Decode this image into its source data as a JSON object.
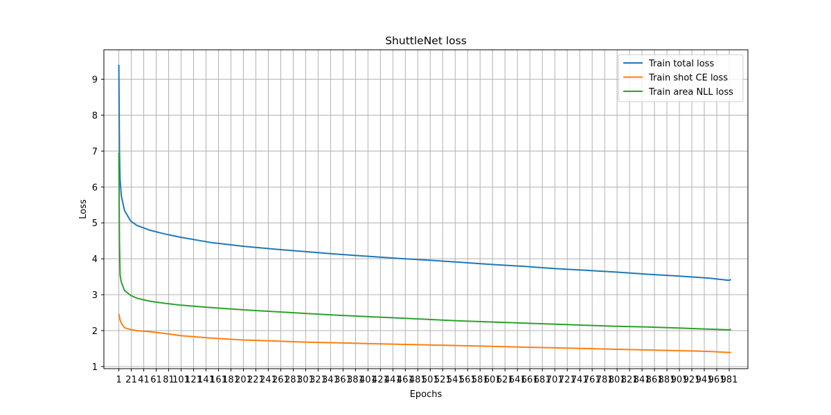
{
  "chart_data": {
    "type": "line",
    "title": "ShuttleNet loss",
    "xlabel": "Epochs",
    "ylabel": "Loss",
    "xlim": [
      -23,
      1011
    ],
    "ylim": [
      0.94,
      9.82
    ],
    "grid": true,
    "legend_position": "top-right",
    "x_ticks": [
      1,
      21,
      41,
      61,
      81,
      101,
      121,
      141,
      161,
      181,
      201,
      221,
      241,
      261,
      281,
      301,
      321,
      341,
      361,
      381,
      401,
      421,
      441,
      461,
      481,
      501,
      521,
      541,
      561,
      581,
      601,
      621,
      641,
      661,
      681,
      701,
      721,
      741,
      761,
      781,
      801,
      821,
      841,
      861,
      881,
      901,
      921,
      941,
      961,
      981
    ],
    "x_tick_labels": [
      "1",
      "21",
      "41",
      "61",
      "81",
      "101",
      "121",
      "141",
      "161",
      "181",
      "201",
      "221",
      "241",
      "261",
      "281",
      "301",
      "321",
      "341",
      "361",
      "381",
      "401",
      "421",
      "441",
      "461",
      "481",
      "501",
      "521",
      "541",
      "561",
      "581",
      "601",
      "621",
      "641",
      "661",
      "681",
      "701",
      "721",
      "741",
      "761",
      "781",
      "801",
      "821",
      "841",
      "861",
      "881",
      "901",
      "921",
      "941",
      "961",
      "981"
    ],
    "y_ticks": [
      1,
      2,
      3,
      4,
      5,
      6,
      7,
      8,
      9
    ],
    "y_tick_labels": [
      "1",
      "2",
      "3",
      "4",
      "5",
      "6",
      "7",
      "8",
      "9"
    ],
    "series": [
      {
        "name": "Train total loss",
        "color": "#1f77b4",
        "x": [
          1,
          2,
          3,
          5,
          10,
          20,
          30,
          50,
          75,
          100,
          150,
          200,
          250,
          300,
          350,
          400,
          450,
          500,
          550,
          600,
          650,
          700,
          750,
          800,
          850,
          900,
          950,
          980,
          984
        ],
        "y": [
          9.4,
          7.0,
          6.2,
          5.75,
          5.35,
          5.05,
          4.93,
          4.8,
          4.69,
          4.6,
          4.45,
          4.35,
          4.27,
          4.2,
          4.13,
          4.07,
          4.01,
          3.96,
          3.9,
          3.84,
          3.79,
          3.73,
          3.68,
          3.63,
          3.57,
          3.52,
          3.46,
          3.4,
          3.42
        ]
      },
      {
        "name": "Train shot CE loss",
        "color": "#ff7f0e",
        "x": [
          1,
          3,
          5,
          10,
          20,
          30,
          50,
          75,
          100,
          150,
          200,
          250,
          300,
          350,
          400,
          450,
          500,
          550,
          600,
          650,
          700,
          750,
          800,
          850,
          900,
          950,
          980,
          984
        ],
        "y": [
          2.47,
          2.3,
          2.2,
          2.08,
          2.03,
          2.0,
          1.97,
          1.92,
          1.86,
          1.79,
          1.74,
          1.71,
          1.68,
          1.66,
          1.64,
          1.62,
          1.6,
          1.58,
          1.56,
          1.54,
          1.52,
          1.5,
          1.48,
          1.46,
          1.44,
          1.42,
          1.39,
          1.39
        ]
      },
      {
        "name": "Train area NLL loss",
        "color": "#2ca02c",
        "x": [
          1,
          2,
          3,
          5,
          10,
          20,
          30,
          50,
          75,
          100,
          150,
          200,
          250,
          300,
          350,
          400,
          450,
          500,
          550,
          600,
          650,
          700,
          750,
          800,
          850,
          900,
          950,
          980,
          984
        ],
        "y": [
          6.95,
          4.5,
          3.55,
          3.35,
          3.12,
          2.98,
          2.9,
          2.82,
          2.76,
          2.71,
          2.64,
          2.58,
          2.53,
          2.48,
          2.43,
          2.39,
          2.35,
          2.31,
          2.27,
          2.24,
          2.21,
          2.18,
          2.15,
          2.12,
          2.1,
          2.07,
          2.04,
          2.02,
          2.03
        ]
      }
    ]
  }
}
